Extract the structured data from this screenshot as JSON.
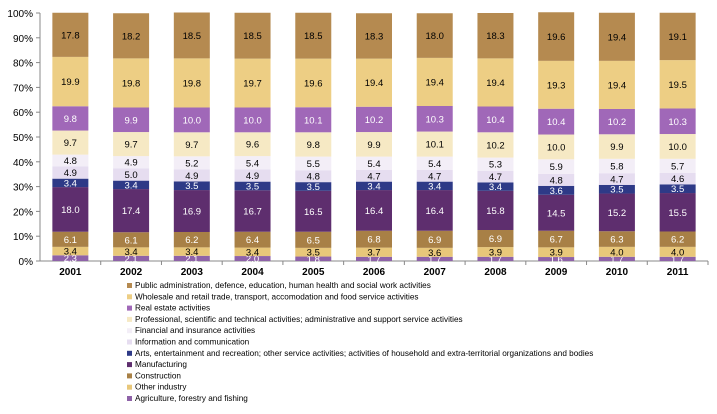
{
  "chart_data": {
    "type": "bar",
    "stacked": true,
    "categories": [
      "2001",
      "2002",
      "2003",
      "2004",
      "2005",
      "2006",
      "2007",
      "2008",
      "2009",
      "2010",
      "2011"
    ],
    "ylim": [
      0,
      100
    ],
    "yticks": [
      "0%",
      "10%",
      "20%",
      "30%",
      "40%",
      "50%",
      "60%",
      "70%",
      "80%",
      "90%",
      "100%"
    ],
    "grid": false,
    "legend_position": "bottom",
    "series": [
      {
        "name": "Agriculture, forestry and fishing",
        "color": "#8E62A8",
        "label_color": "#ffffff",
        "values": [
          2.3,
          2.1,
          2.1,
          2.0,
          1.8,
          1.7,
          1.7,
          1.7,
          1.6,
          1.7,
          1.7
        ]
      },
      {
        "name": "Other industry",
        "color": "#E8C77A",
        "label_color": "#000000",
        "values": [
          3.4,
          3.4,
          3.4,
          3.4,
          3.5,
          3.7,
          3.6,
          3.9,
          3.9,
          4.0,
          4.0
        ]
      },
      {
        "name": "Construction",
        "color": "#A88046",
        "label_color": "#ffffff",
        "values": [
          6.1,
          6.1,
          6.2,
          6.4,
          6.5,
          6.8,
          6.9,
          6.9,
          6.7,
          6.3,
          6.2
        ]
      },
      {
        "name": "Manufacturing",
        "color": "#5E2E6E",
        "label_color": "#ffffff",
        "values": [
          18.0,
          17.4,
          16.9,
          16.7,
          16.5,
          16.4,
          16.4,
          15.8,
          14.5,
          15.2,
          15.5
        ]
      },
      {
        "name": "Arts, entertainment and recreation; other service activities; activities of household and extra-territorial organizations and bodies",
        "color": "#2E3A87",
        "label_color": "#ffffff",
        "values": [
          3.4,
          3.4,
          3.5,
          3.5,
          3.5,
          3.4,
          3.4,
          3.4,
          3.6,
          3.5,
          3.5
        ]
      },
      {
        "name": "Information and communication",
        "color": "#E6DDF0",
        "label_color": "#000000",
        "values": [
          4.9,
          5.0,
          4.9,
          4.9,
          4.8,
          4.7,
          4.7,
          4.7,
          4.8,
          4.7,
          4.6
        ]
      },
      {
        "name": "Financial and insurance activities",
        "color": "#F3EEF7",
        "label_color": "#000000",
        "values": [
          4.8,
          4.9,
          5.2,
          5.4,
          5.5,
          5.4,
          5.4,
          5.3,
          5.9,
          5.8,
          5.7
        ]
      },
      {
        "name": "Professional, scientific and technical activities; administrative and support service activities",
        "color": "#F6E9C4",
        "label_color": "#000000",
        "values": [
          9.7,
          9.7,
          9.7,
          9.6,
          9.8,
          9.9,
          10.1,
          10.2,
          10.0,
          9.9,
          10.0
        ]
      },
      {
        "name": "Real estate activities",
        "color": "#A068B8",
        "label_color": "#ffffff",
        "values": [
          9.8,
          9.9,
          10.0,
          10.0,
          10.1,
          10.2,
          10.3,
          10.4,
          10.4,
          10.2,
          10.3
        ]
      },
      {
        "name": "Wholesale and retail trade, transport, accomodation and food service activities",
        "color": "#EDCE84",
        "label_color": "#000000",
        "values": [
          19.9,
          19.8,
          19.8,
          19.7,
          19.6,
          19.4,
          19.4,
          19.4,
          19.3,
          19.4,
          19.5
        ]
      },
      {
        "name": "Public administration, defence, education, human health and social work activities",
        "color": "#B58A50",
        "label_color": "#000000",
        "values": [
          17.8,
          18.2,
          18.5,
          18.5,
          18.5,
          18.3,
          18.0,
          18.3,
          19.6,
          19.4,
          19.1
        ]
      }
    ]
  }
}
